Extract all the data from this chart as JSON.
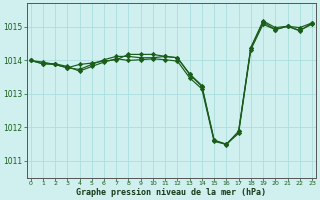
{
  "background_color": "#cff0ee",
  "plot_bg_color": "#cff0ee",
  "grid_color": "#aadddd",
  "line_color": "#1a5c1a",
  "marker_color": "#1a5c1a",
  "xlabel": "Graphe pression niveau de la mer (hPa)",
  "ylim": [
    1010.5,
    1015.7
  ],
  "yticks": [
    1011,
    1012,
    1013,
    1014,
    1015
  ],
  "xlim": [
    -0.3,
    23.3
  ],
  "xticks": [
    0,
    1,
    2,
    3,
    4,
    5,
    6,
    7,
    8,
    9,
    10,
    11,
    12,
    13,
    14,
    15,
    16,
    17,
    18,
    19,
    20,
    21,
    22,
    23
  ],
  "series": [
    [
      1014.0,
      1013.9,
      1013.9,
      1013.82,
      1013.68,
      1013.82,
      1013.95,
      1014.05,
      1014.0,
      1014.02,
      1014.05,
      1014.02,
      1013.98,
      1013.48,
      1013.15,
      1011.58,
      1011.5,
      1011.82,
      1014.32,
      1015.08,
      1014.92,
      1015.02,
      1014.9,
      1015.08
    ],
    [
      1014.0,
      1013.9,
      1013.88,
      1013.78,
      1013.73,
      1013.88,
      1014.02,
      1014.12,
      1014.12,
      1014.08,
      1014.08,
      1014.12,
      1014.08,
      1013.6,
      1013.25,
      1011.62,
      1011.5,
      1011.88,
      1014.38,
      1015.15,
      1014.92,
      1015.02,
      1014.88,
      1015.12
    ],
    [
      1014.0,
      1013.95,
      1013.88,
      1013.78,
      1013.88,
      1013.92,
      1013.98,
      1014.02,
      1014.18,
      1014.18,
      1014.18,
      1014.12,
      1014.08,
      1013.58,
      1013.22,
      1011.62,
      1011.48,
      1011.88,
      1014.38,
      1015.18,
      1014.98,
      1015.02,
      1014.98,
      1015.12
    ]
  ]
}
